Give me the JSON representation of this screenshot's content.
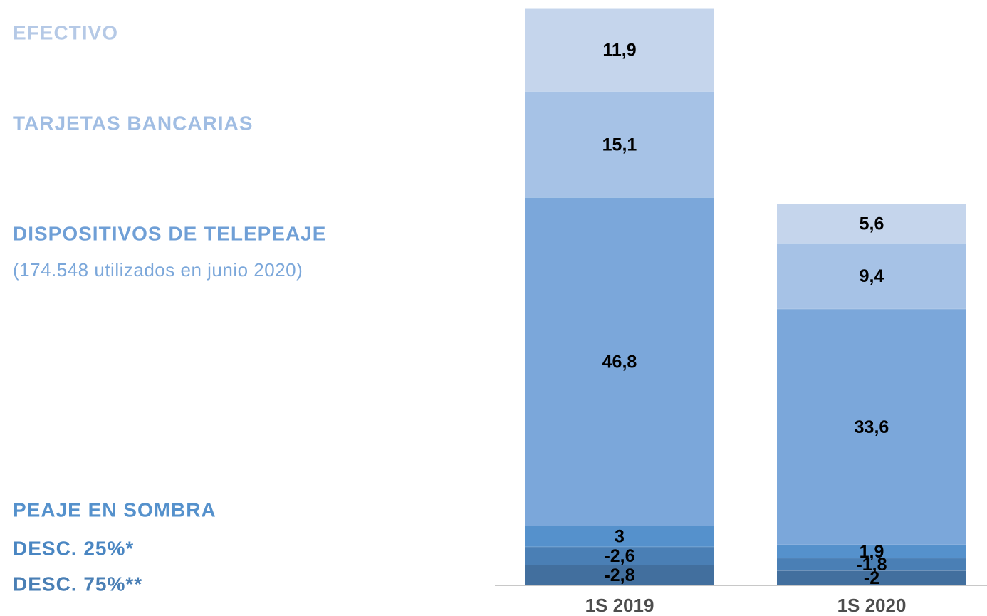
{
  "chart_data": {
    "type": "stacked_bar",
    "categories": [
      "1S 2019",
      "1S 2020"
    ],
    "annotation": "(174.548 utilizados en junio 2020)",
    "series": [
      {
        "name": "EFECTIVO",
        "color": "#c5d5ec",
        "values": [
          11.9,
          5.6
        ],
        "value_labels": [
          "11,9",
          "5,6"
        ]
      },
      {
        "name": "TARJETAS BANCARIAS",
        "color": "#a6c2e6",
        "values": [
          15.1,
          9.4
        ],
        "value_labels": [
          "15,1",
          "9,4"
        ]
      },
      {
        "name": "DISPOSITIVOS DE TELEPEAJE",
        "color": "#7ba7da",
        "values": [
          46.8,
          33.6
        ],
        "value_labels": [
          "46,8",
          "33,6"
        ]
      },
      {
        "name": "PEAJE EN SOMBRA",
        "color": "#5591cc",
        "values": [
          3,
          1.9
        ],
        "value_labels": [
          "3",
          "1,9"
        ]
      },
      {
        "name": "DESC. 25%*",
        "color": "#4a7fb5",
        "values": [
          -2.6,
          -1.8
        ],
        "value_labels": [
          "-2,6",
          "-1,8"
        ]
      },
      {
        "name": "DESC. 75%**",
        "color": "#426f9e",
        "values": [
          -2.8,
          -2
        ],
        "value_labels": [
          "-2,8",
          "-2"
        ]
      }
    ]
  }
}
